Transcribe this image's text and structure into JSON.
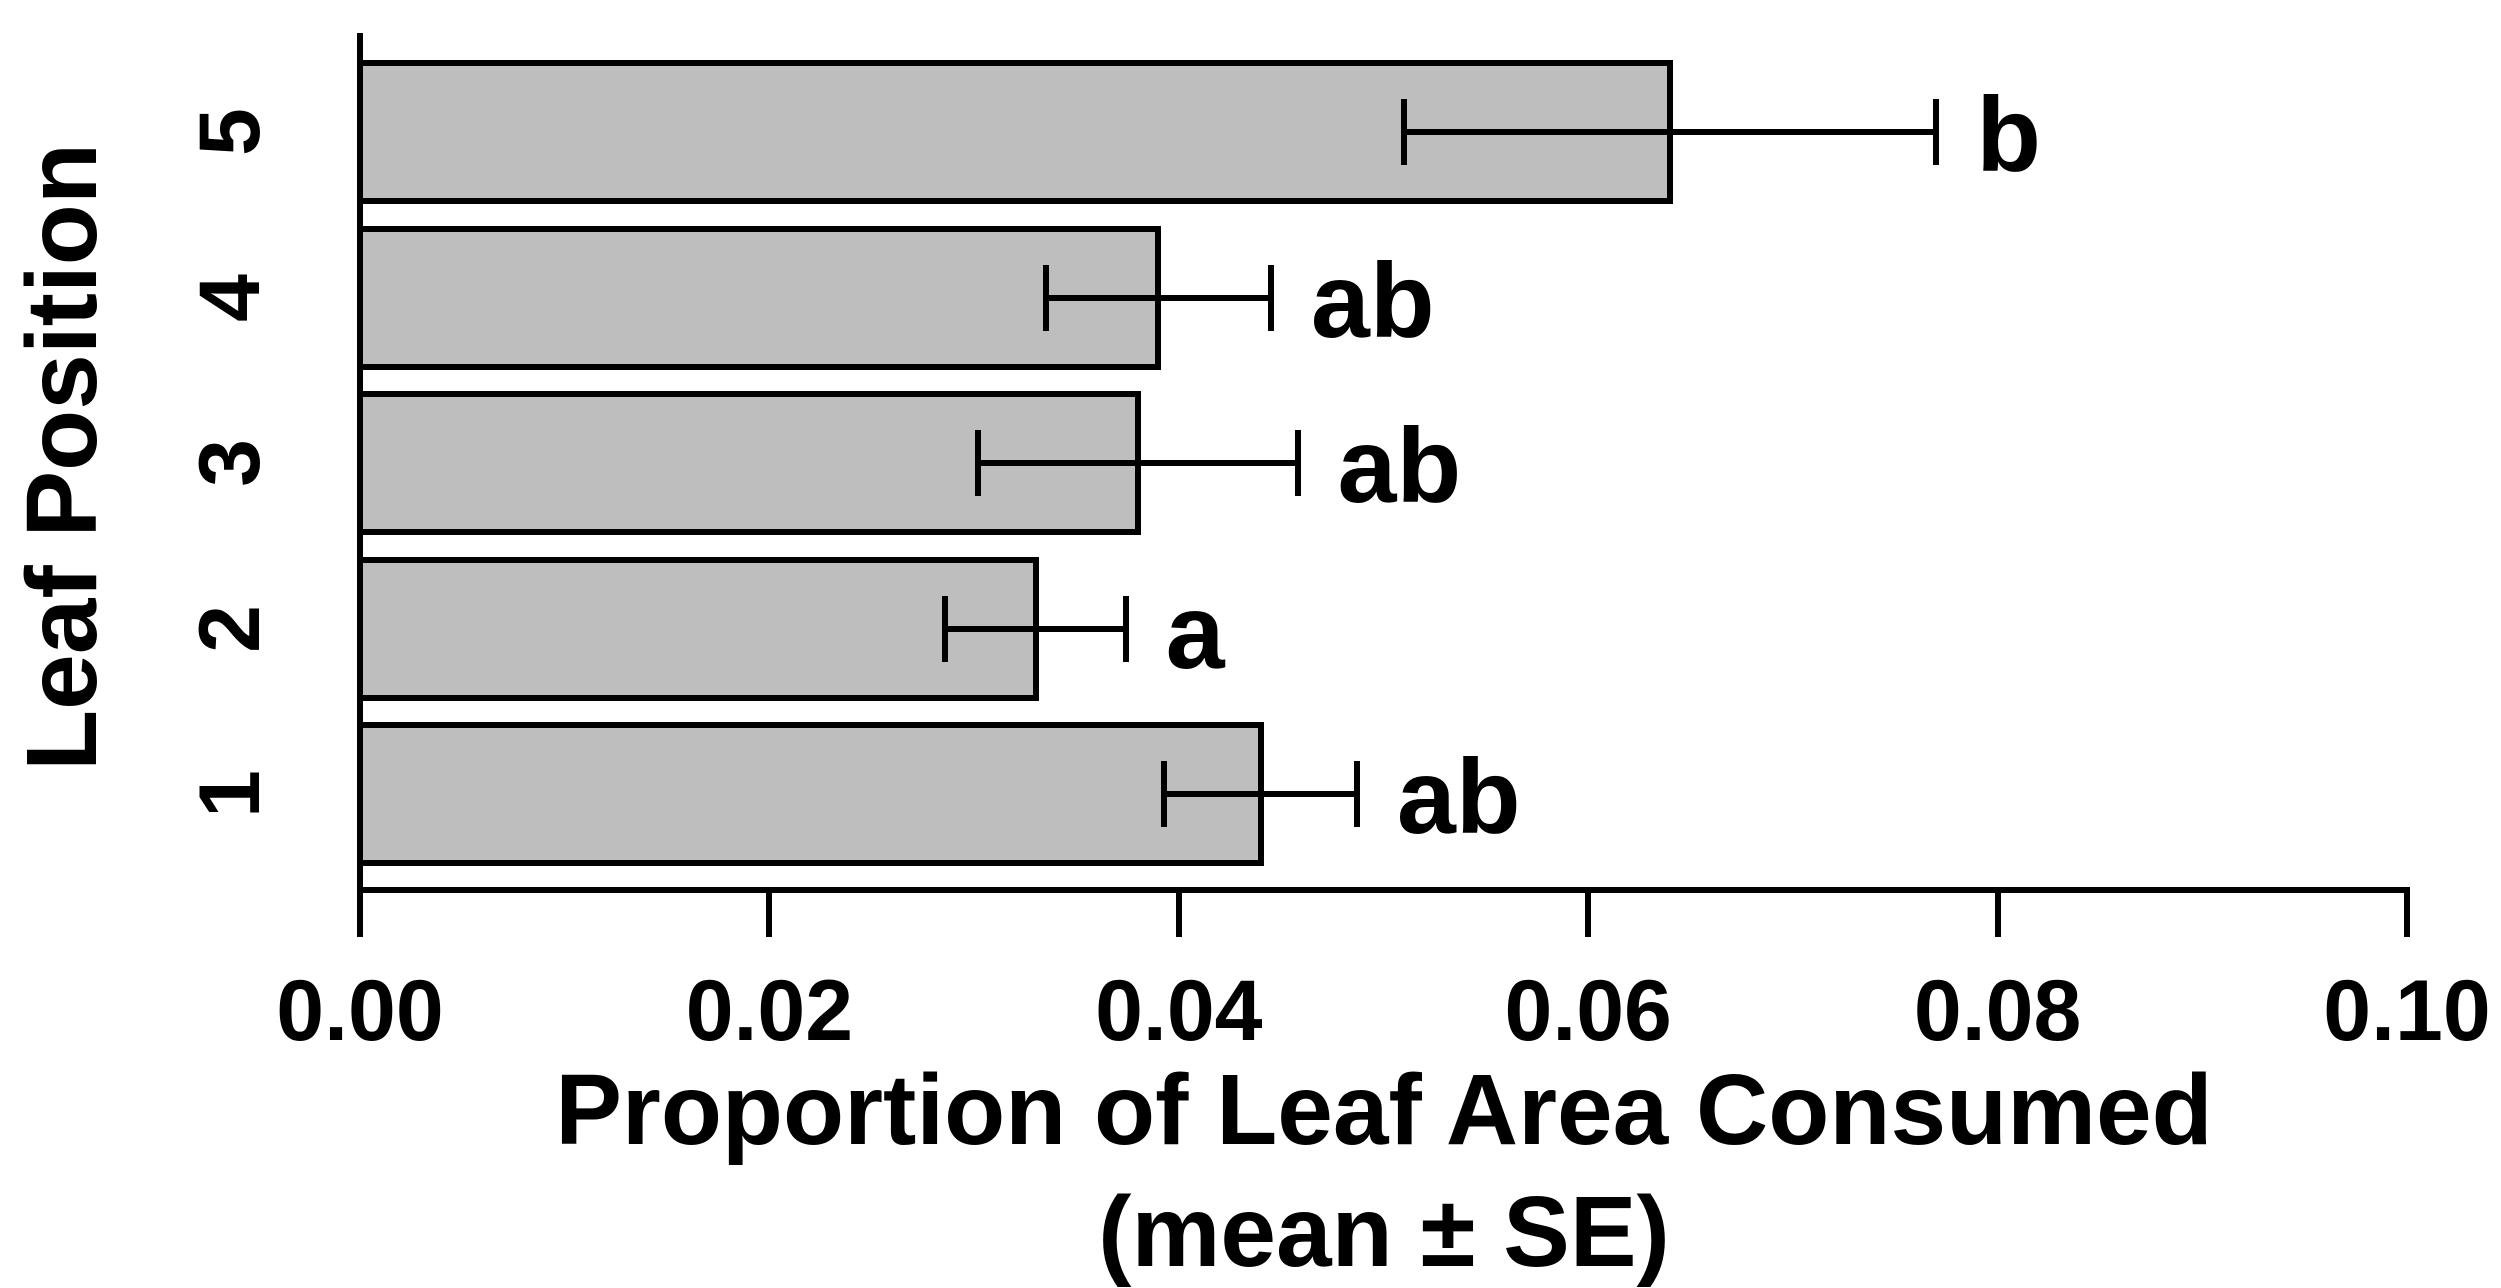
{
  "chart_data": {
    "type": "bar",
    "orientation": "horizontal",
    "title": "",
    "ylabel": "Leaf Position",
    "xlabel_line1": "Proportion of Leaf Area Consumed",
    "xlabel_line2": "(mean ± SE)",
    "categories": [
      "1",
      "2",
      "3",
      "4",
      "5"
    ],
    "categories_order": "bottom-to-top (position 1 nearest the x-axis)",
    "series": [
      {
        "name": "mean proportion of leaf area consumed",
        "values": [
          0.044,
          0.033,
          0.038,
          0.039,
          0.064
        ]
      }
    ],
    "errors_se": [
      0.0047,
      0.0044,
      0.0078,
      0.0055,
      0.013
    ],
    "sig_letters": [
      "ab",
      "a",
      "ab",
      "ab",
      "b"
    ],
    "x_tick_labels": [
      "0.00",
      "0.02",
      "0.04",
      "0.06",
      "0.08",
      "0.10"
    ],
    "x_tick_values": [
      0,
      0.02,
      0.04,
      0.06,
      0.08,
      0.1
    ],
    "xlim": [
      0,
      0.1
    ],
    "grid": false,
    "legend": null,
    "bar_fill": "#bebebe",
    "bar_border": "#000000",
    "axis_color": "#000000",
    "text_color": "#000000",
    "background": "#ffffff"
  }
}
